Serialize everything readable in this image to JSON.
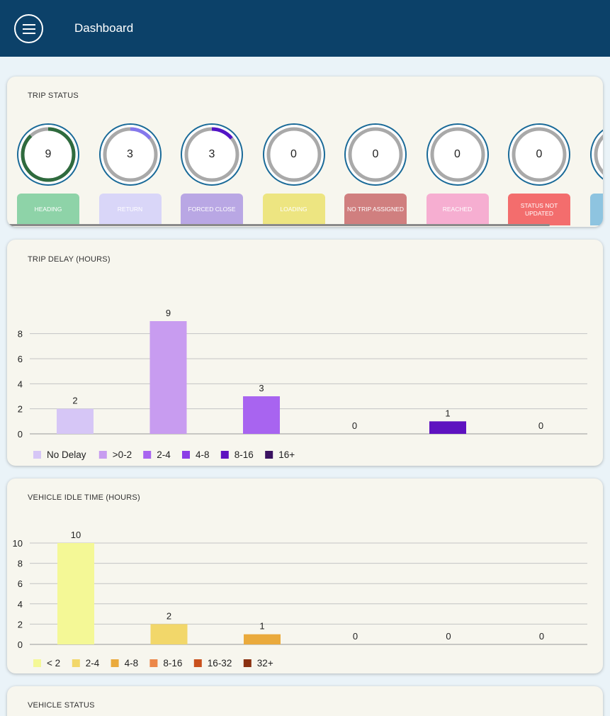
{
  "header": {
    "title": "Dashboard"
  },
  "trip_status": {
    "title": "TRIP STATUS",
    "tiles": [
      {
        "label": "HEADING",
        "value": "9",
        "color": "#8ed3a8",
        "arc_color": "#2f6b3e",
        "arc_fraction": 0.88
      },
      {
        "label": "RETURN",
        "value": "3",
        "color": "#d9d6f8",
        "arc_color": "#8578ec",
        "arc_fraction": 0.14
      },
      {
        "label": "FORCED CLOSE",
        "value": "3",
        "color": "#b9a7e4",
        "arc_color": "#5314c6",
        "arc_fraction": 0.14
      },
      {
        "label": "LOADING",
        "value": "0",
        "color": "#ede581",
        "arc_color": "#555555",
        "arc_fraction": 0
      },
      {
        "label": "NO TRIP ASSIGNED",
        "value": "0",
        "color": "#d07f7f",
        "arc_color": "#555555",
        "arc_fraction": 0
      },
      {
        "label": "REACHED",
        "value": "0",
        "color": "#f6aed1",
        "arc_color": "#555555",
        "arc_fraction": 0
      },
      {
        "label": "STATUS NOT UPDATED",
        "value": "0",
        "color": "#f36d6d",
        "arc_color": "#555555",
        "arc_fraction": 0
      },
      {
        "label": "",
        "value": "",
        "color": "#8ec4e0",
        "arc_color": "#555555",
        "arc_fraction": 0
      }
    ]
  },
  "chart_data": [
    {
      "type": "bar",
      "title": "TRIP DELAY (HOURS)",
      "categories": [
        "No Delay",
        ">0-2",
        "2-4",
        "4-8",
        "8-16",
        "16+"
      ],
      "values": [
        2,
        9,
        3,
        0,
        1,
        0
      ],
      "value_labels": [
        "2",
        "9",
        "3",
        "0",
        "1",
        "0"
      ],
      "colors": [
        "#d6c6f6",
        "#c89cf0",
        "#a864f0",
        "#8b3ee6",
        "#5e12c0",
        "#3a1260"
      ],
      "ylim": [
        0,
        9
      ],
      "yticks": [
        0,
        2,
        4,
        6,
        8
      ],
      "ytick_labels": [
        "0",
        "2",
        "4",
        "6",
        "8"
      ],
      "grid": true,
      "legend": "bottom-left"
    },
    {
      "type": "bar",
      "title": "VEHICLE IDLE TIME (HOURS)",
      "categories": [
        "< 2",
        "2-4",
        "4-8",
        "8-16",
        "16-32",
        "32+"
      ],
      "values": [
        10,
        2,
        1,
        0,
        0,
        0
      ],
      "value_labels": [
        "10",
        "2",
        "1",
        "0",
        "0",
        "0"
      ],
      "colors": [
        "#f4f896",
        "#f2d76a",
        "#eaaa3c",
        "#ec8748",
        "#c9501c",
        "#8a3010"
      ],
      "ylim": [
        0,
        10
      ],
      "yticks": [
        0,
        2,
        4,
        6,
        8,
        10
      ],
      "ytick_labels": [
        "0",
        "2",
        "4",
        "6",
        "8",
        "10"
      ],
      "grid": true,
      "legend": "bottom-left"
    }
  ],
  "vehicle_status": {
    "title": "VEHICLE STATUS"
  }
}
